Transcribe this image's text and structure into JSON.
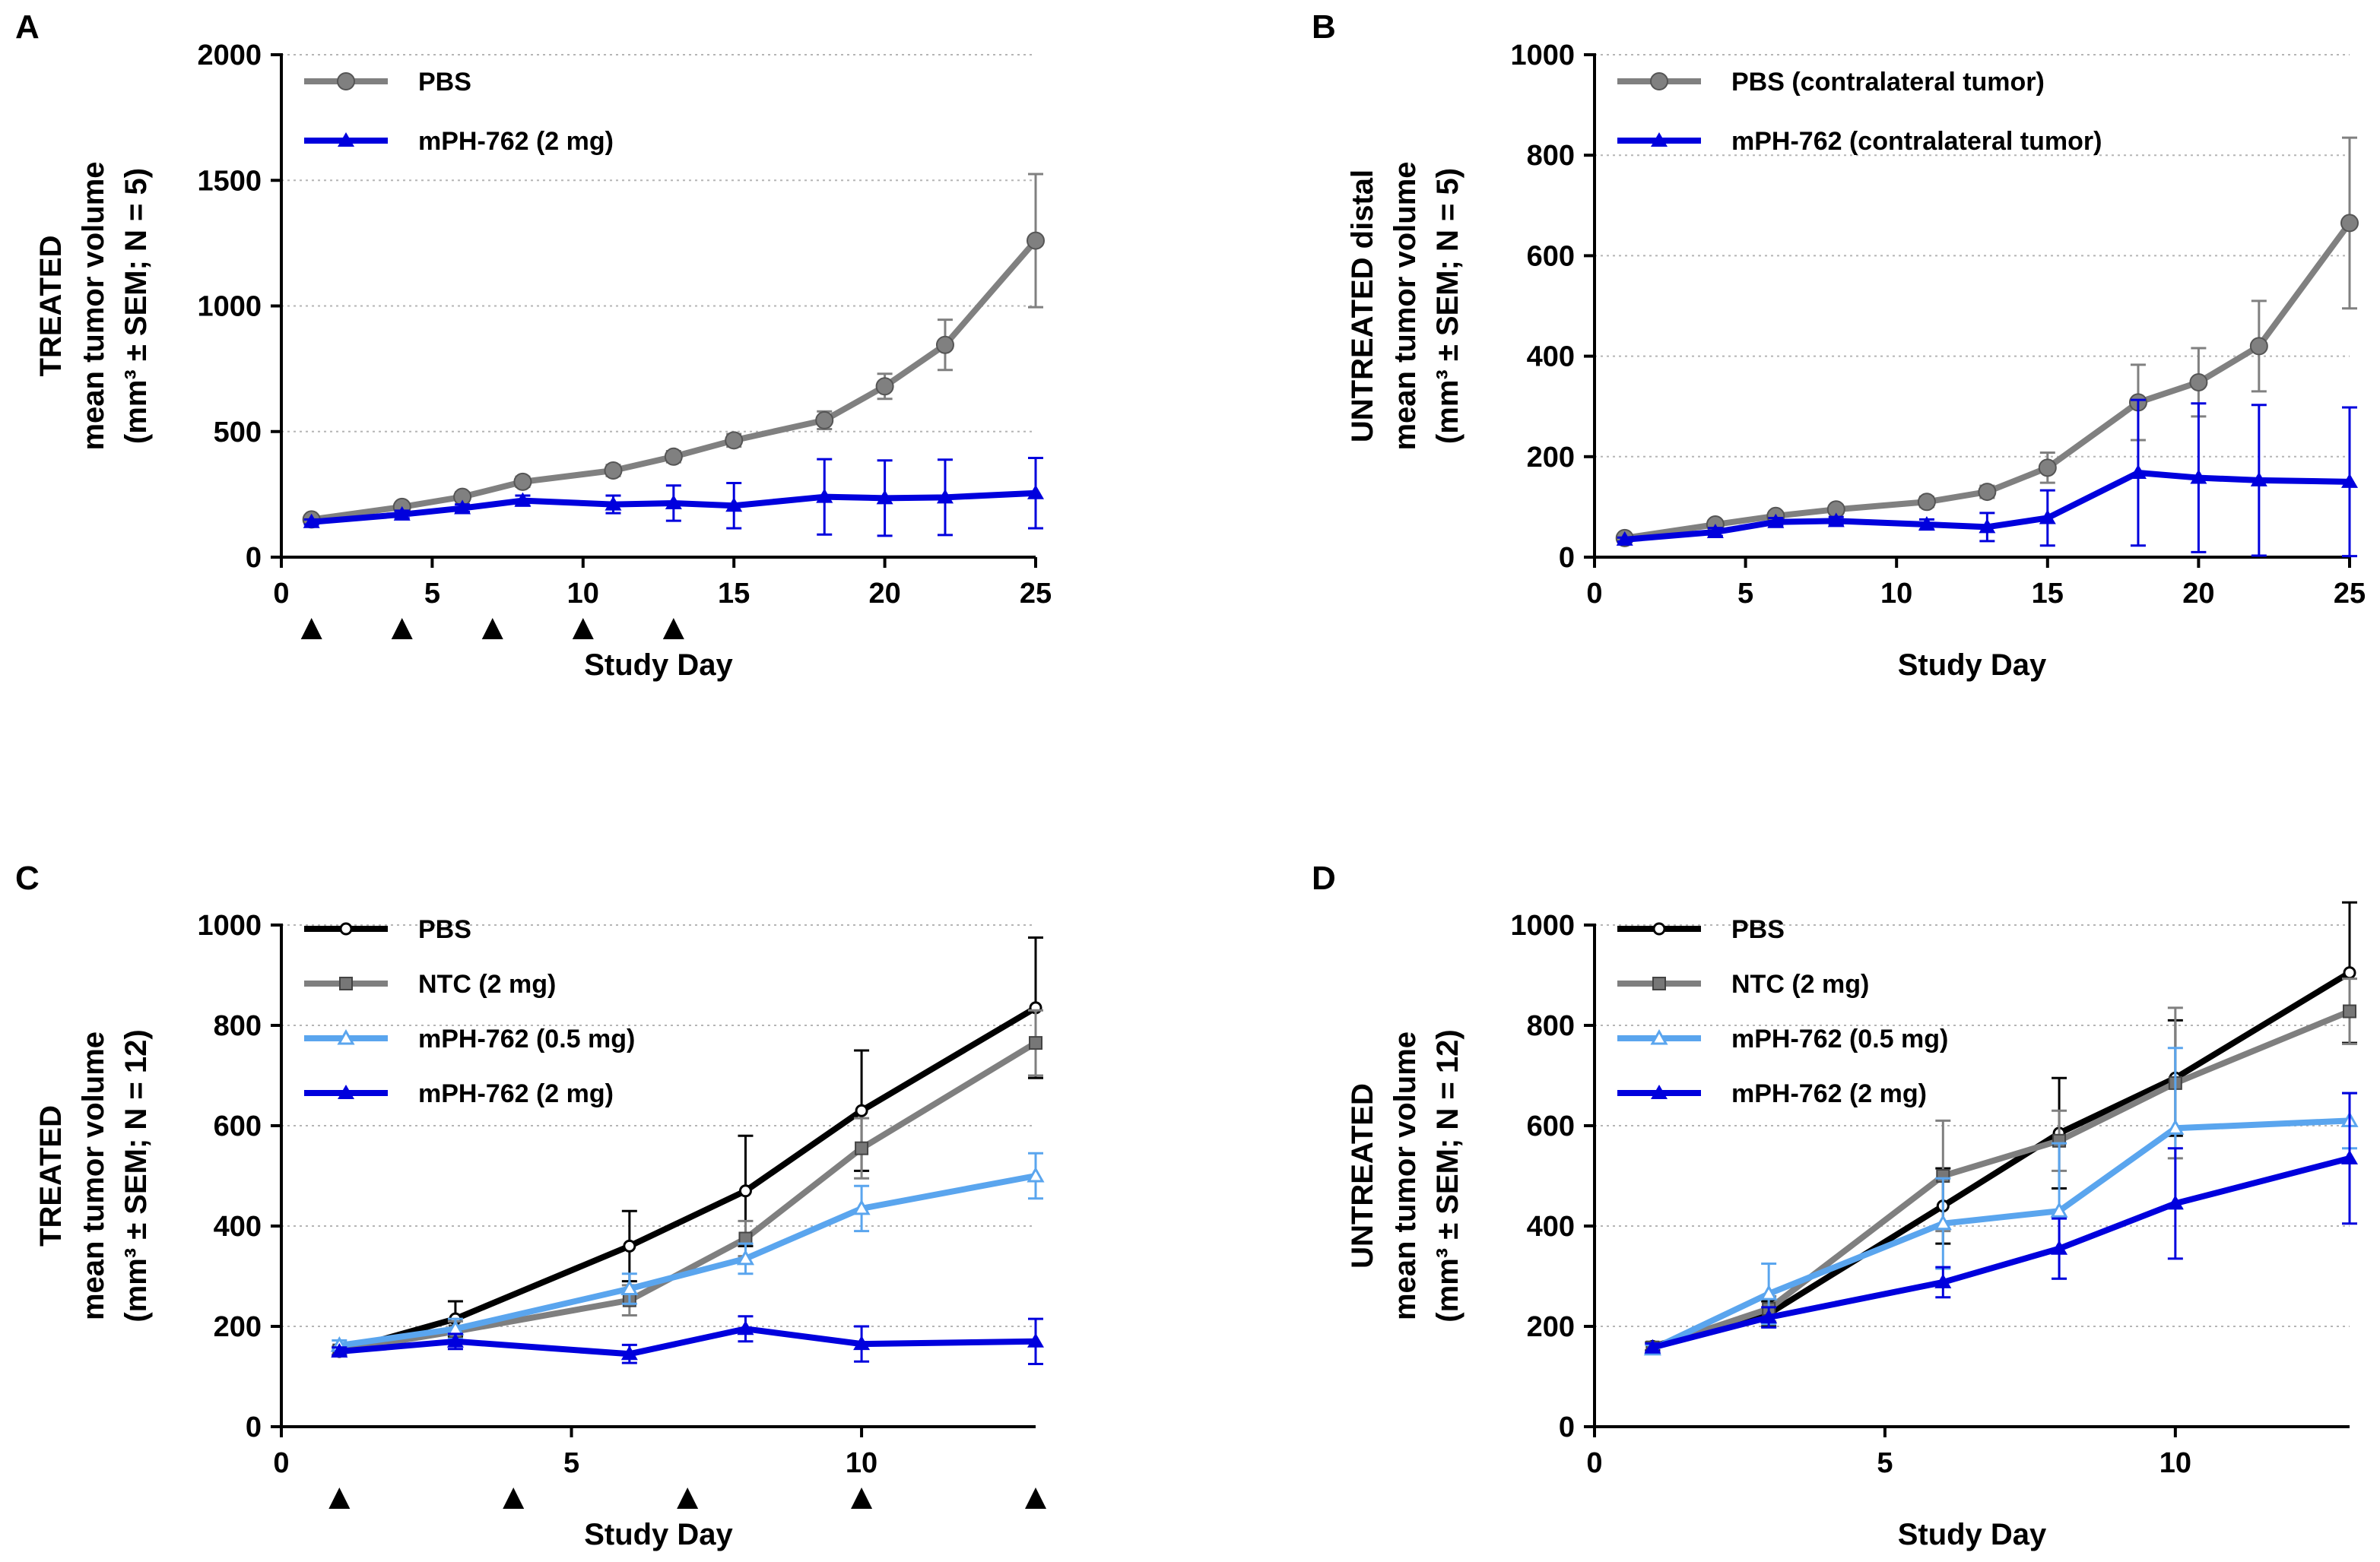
{
  "chart_data": [
    {
      "panel": "A",
      "type": "line",
      "ylabel": [
        "TREATED",
        "mean tumor volume",
        "(mm³ ± SEM; N = 5)"
      ],
      "xlabel": "Study Day",
      "xlim": [
        0,
        25
      ],
      "ylim": [
        0,
        2000
      ],
      "xticks": [
        0,
        5,
        10,
        15,
        20,
        25
      ],
      "yticks": [
        0,
        500,
        1000,
        1500,
        2000
      ],
      "grid": true,
      "legend_position": "top-left",
      "dosing_days": [
        1,
        4,
        7,
        10,
        13
      ],
      "series": [
        {
          "name": "PBS",
          "color": "#808080",
          "marker": "circle",
          "x": [
            1,
            4,
            6,
            8,
            11,
            13,
            15,
            18,
            20,
            22,
            25
          ],
          "y": [
            150,
            200,
            240,
            300,
            345,
            400,
            465,
            545,
            680,
            845,
            1260
          ],
          "err": [
            12,
            15,
            18,
            20,
            22,
            22,
            25,
            35,
            50,
            100,
            265
          ]
        },
        {
          "name": "mPH-762 (2 mg)",
          "color": "#0000dd",
          "marker": "triangle",
          "x": [
            1,
            4,
            6,
            8,
            11,
            13,
            15,
            18,
            20,
            22,
            25
          ],
          "y": [
            140,
            170,
            195,
            225,
            210,
            215,
            205,
            240,
            235,
            238,
            255
          ],
          "err": [
            10,
            15,
            15,
            20,
            35,
            70,
            90,
            150,
            150,
            150,
            140
          ]
        }
      ]
    },
    {
      "panel": "B",
      "type": "line",
      "ylabel": [
        "UNTREATED distal",
        "mean tumor volume",
        "(mm³ ± SEM; N = 5)"
      ],
      "xlabel": "Study Day",
      "xlim": [
        0,
        25
      ],
      "ylim": [
        0,
        1000
      ],
      "xticks": [
        0,
        5,
        10,
        15,
        20,
        25
      ],
      "yticks": [
        0,
        200,
        400,
        600,
        800,
        1000
      ],
      "grid": true,
      "legend_position": "top-left",
      "dosing_days": [],
      "series": [
        {
          "name": "PBS (contralateral tumor)",
          "color": "#808080",
          "marker": "circle",
          "x": [
            1,
            4,
            6,
            8,
            11,
            13,
            15,
            18,
            20,
            22,
            25
          ],
          "y": [
            38,
            65,
            82,
            95,
            110,
            130,
            178,
            308,
            348,
            420,
            665
          ],
          "err": [
            4,
            8,
            8,
            8,
            10,
            12,
            30,
            75,
            68,
            90,
            170
          ]
        },
        {
          "name": "mPH-762 (contralateral tumor)",
          "color": "#0000dd",
          "marker": "triangle",
          "x": [
            1,
            4,
            6,
            8,
            11,
            13,
            15,
            18,
            20,
            22,
            25
          ],
          "y": [
            35,
            50,
            70,
            72,
            65,
            60,
            78,
            168,
            158,
            153,
            150
          ],
          "err": [
            4,
            8,
            8,
            8,
            10,
            28,
            55,
            145,
            148,
            150,
            148
          ]
        }
      ]
    },
    {
      "panel": "C",
      "type": "line",
      "ylabel": [
        "TREATED",
        "mean tumor volume",
        "(mm³ ± SEM; N = 12)"
      ],
      "xlabel": "Study Day",
      "xlim": [
        0,
        13
      ],
      "ylim": [
        0,
        1000
      ],
      "xticks": [
        0,
        5,
        10
      ],
      "yticks": [
        0,
        200,
        400,
        600,
        800,
        1000
      ],
      "grid": true,
      "legend_position": "top-left",
      "dosing_days": [
        1,
        4,
        7,
        10,
        13
      ],
      "series": [
        {
          "name": "PBS",
          "color": "#000000",
          "marker": "open-circle",
          "x": [
            1,
            3,
            6,
            8,
            10,
            13
          ],
          "y": [
            150,
            215,
            360,
            470,
            630,
            835
          ],
          "err": [
            8,
            35,
            70,
            110,
            120,
            140
          ]
        },
        {
          "name": "NTC (2 mg)",
          "color": "#7f7f7f",
          "marker": "square",
          "x": [
            1,
            3,
            6,
            8,
            10,
            13
          ],
          "y": [
            152,
            190,
            252,
            375,
            555,
            765
          ],
          "err": [
            8,
            20,
            30,
            35,
            60,
            65
          ]
        },
        {
          "name": "mPH-762 (0.5 mg)",
          "color": "#5aa5ee",
          "marker": "open-triangle",
          "x": [
            1,
            3,
            6,
            8,
            10,
            13
          ],
          "y": [
            162,
            195,
            275,
            335,
            435,
            500
          ],
          "err": [
            10,
            20,
            30,
            30,
            45,
            45
          ]
        },
        {
          "name": "mPH-762 (2 mg)",
          "color": "#0000dd",
          "marker": "triangle",
          "x": [
            1,
            3,
            6,
            8,
            10,
            13
          ],
          "y": [
            150,
            170,
            145,
            195,
            165,
            170
          ],
          "err": [
            8,
            15,
            18,
            25,
            35,
            45
          ]
        }
      ]
    },
    {
      "panel": "D",
      "type": "line",
      "ylabel": [
        "UNTREATED",
        "mean tumor volume",
        "(mm³ ± SEM; N = 12)"
      ],
      "xlabel": "Study Day",
      "xlim": [
        0,
        13
      ],
      "ylim": [
        0,
        1000
      ],
      "xticks": [
        0,
        5,
        10
      ],
      "yticks": [
        0,
        200,
        400,
        600,
        800,
        1000
      ],
      "grid": true,
      "legend_position": "top-left",
      "dosing_days": [],
      "series": [
        {
          "name": "PBS",
          "color": "#000000",
          "marker": "open-circle",
          "x": [
            1,
            3,
            6,
            8,
            10,
            13
          ],
          "y": [
            160,
            225,
            440,
            585,
            695,
            905
          ],
          "err": [
            8,
            25,
            75,
            110,
            115,
            140
          ]
        },
        {
          "name": "NTC (2 mg)",
          "color": "#7f7f7f",
          "marker": "square",
          "x": [
            1,
            3,
            6,
            8,
            10,
            13
          ],
          "y": [
            158,
            235,
            500,
            570,
            685,
            828
          ],
          "err": [
            8,
            25,
            110,
            60,
            150,
            65
          ]
        },
        {
          "name": "mPH-762 (0.5 mg)",
          "color": "#5aa5ee",
          "marker": "open-triangle",
          "x": [
            1,
            3,
            6,
            8,
            10,
            13
          ],
          "y": [
            155,
            265,
            405,
            430,
            595,
            610
          ],
          "err": [
            8,
            60,
            90,
            135,
            160,
            55
          ]
        },
        {
          "name": "mPH-762 (2 mg)",
          "color": "#0000dd",
          "marker": "triangle",
          "x": [
            1,
            3,
            6,
            8,
            10,
            13
          ],
          "y": [
            158,
            218,
            288,
            355,
            445,
            535
          ],
          "err": [
            8,
            20,
            30,
            60,
            110,
            130
          ]
        }
      ]
    }
  ]
}
